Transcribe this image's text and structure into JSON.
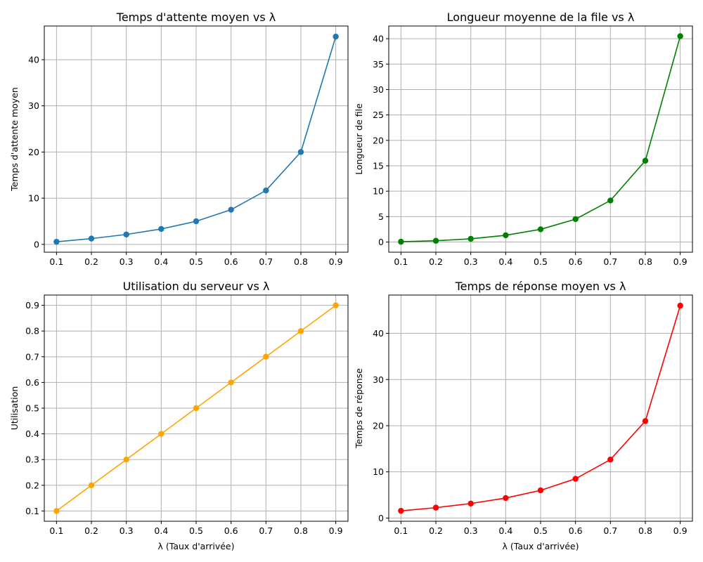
{
  "chart_data": [
    {
      "type": "line",
      "title": "Temps d'attente moyen vs λ",
      "xlabel": "",
      "ylabel": "Temps d'attente moyen",
      "x": [
        0.1,
        0.2,
        0.3,
        0.4,
        0.5,
        0.6,
        0.7,
        0.8,
        0.9
      ],
      "series": [
        {
          "values": [
            0.56,
            1.25,
            2.14,
            3.33,
            5.0,
            7.5,
            11.67,
            20.0,
            45.0
          ],
          "color": "#1f77b4"
        }
      ],
      "xlim": [
        0.065,
        0.935
      ],
      "ylim": [
        -1.7,
        47.3
      ],
      "xticks": [
        "0.1",
        "0.2",
        "0.3",
        "0.4",
        "0.5",
        "0.6",
        "0.7",
        "0.8",
        "0.9"
      ],
      "yticks": [
        "0",
        "10",
        "20",
        "30",
        "40"
      ],
      "grid": true
    },
    {
      "type": "line",
      "title": "Longueur moyenne de la file vs λ",
      "xlabel": "",
      "ylabel": "Longueur de file",
      "x": [
        0.1,
        0.2,
        0.3,
        0.4,
        0.5,
        0.6,
        0.7,
        0.8,
        0.9
      ],
      "series": [
        {
          "values": [
            0.06,
            0.25,
            0.64,
            1.33,
            2.5,
            4.5,
            8.17,
            16.0,
            40.5
          ],
          "color": "#008000"
        }
      ],
      "xlim": [
        0.065,
        0.935
      ],
      "ylim": [
        -2.0,
        42.5
      ],
      "xticks": [
        "0.1",
        "0.2",
        "0.3",
        "0.4",
        "0.5",
        "0.6",
        "0.7",
        "0.8",
        "0.9"
      ],
      "yticks": [
        "0",
        "5",
        "10",
        "15",
        "20",
        "25",
        "30",
        "35",
        "40"
      ],
      "grid": true
    },
    {
      "type": "line",
      "title": "Utilisation du serveur vs λ",
      "xlabel": "λ (Taux d'arrivée)",
      "ylabel": "Utilisation",
      "x": [
        0.1,
        0.2,
        0.3,
        0.4,
        0.5,
        0.6,
        0.7,
        0.8,
        0.9
      ],
      "series": [
        {
          "values": [
            0.1,
            0.2,
            0.3,
            0.4,
            0.5,
            0.6,
            0.7,
            0.8,
            0.9
          ],
          "color": "#ffa500"
        }
      ],
      "xlim": [
        0.065,
        0.935
      ],
      "ylim": [
        0.06,
        0.94
      ],
      "xticks": [
        "0.1",
        "0.2",
        "0.3",
        "0.4",
        "0.5",
        "0.6",
        "0.7",
        "0.8",
        "0.9"
      ],
      "yticks": [
        "0.1",
        "0.2",
        "0.3",
        "0.4",
        "0.5",
        "0.6",
        "0.7",
        "0.8",
        "0.9"
      ],
      "grid": true
    },
    {
      "type": "line",
      "title": "Temps de réponse moyen vs λ",
      "xlabel": "λ (Taux d'arrivée)",
      "ylabel": "Temps de réponse",
      "x": [
        0.1,
        0.2,
        0.3,
        0.4,
        0.5,
        0.6,
        0.7,
        0.8,
        0.9
      ],
      "series": [
        {
          "values": [
            1.56,
            2.25,
            3.14,
            4.33,
            6.0,
            8.5,
            12.67,
            21.0,
            46.0
          ],
          "color": "#ff0000"
        }
      ],
      "xlim": [
        0.065,
        0.935
      ],
      "ylim": [
        -0.7,
        48.3
      ],
      "xticks": [
        "0.1",
        "0.2",
        "0.3",
        "0.4",
        "0.5",
        "0.6",
        "0.7",
        "0.8",
        "0.9"
      ],
      "yticks": [
        "0",
        "10",
        "20",
        "30",
        "40"
      ],
      "grid": true
    }
  ]
}
